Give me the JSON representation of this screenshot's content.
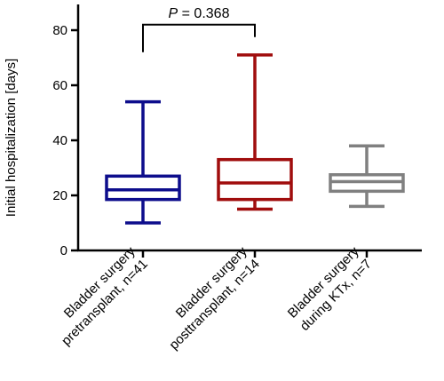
{
  "chart_data": {
    "type": "box",
    "title": "",
    "xlabel": "",
    "ylabel": "Initial hospitalization [days]",
    "ylim": [
      0,
      85
    ],
    "yticks": [
      0,
      20,
      40,
      60,
      80
    ],
    "grid": false,
    "legend": "none",
    "series": [
      {
        "category_lines": [
          "Bladder surgery",
          "pretransplant, n=41"
        ],
        "color": "#0d0d8c",
        "min": 10,
        "q1": 18.5,
        "median": 22,
        "q3": 27,
        "max": 54
      },
      {
        "category_lines": [
          "Bladder surgery",
          "posttransplant, n=14"
        ],
        "color": "#a00d0d",
        "min": 15,
        "q1": 18.5,
        "median": 24.5,
        "q3": 33,
        "max": 71
      },
      {
        "category_lines": [
          "Bladder surgery",
          "during KTx, n=7"
        ],
        "color": "#808080",
        "min": 16,
        "q1": 21.5,
        "median": 25,
        "q3": 27.5,
        "max": 38
      }
    ],
    "annotation": {
      "p_label": "P",
      "p_value": " = 0.368",
      "between": [
        0,
        1
      ],
      "level": 82
    }
  }
}
